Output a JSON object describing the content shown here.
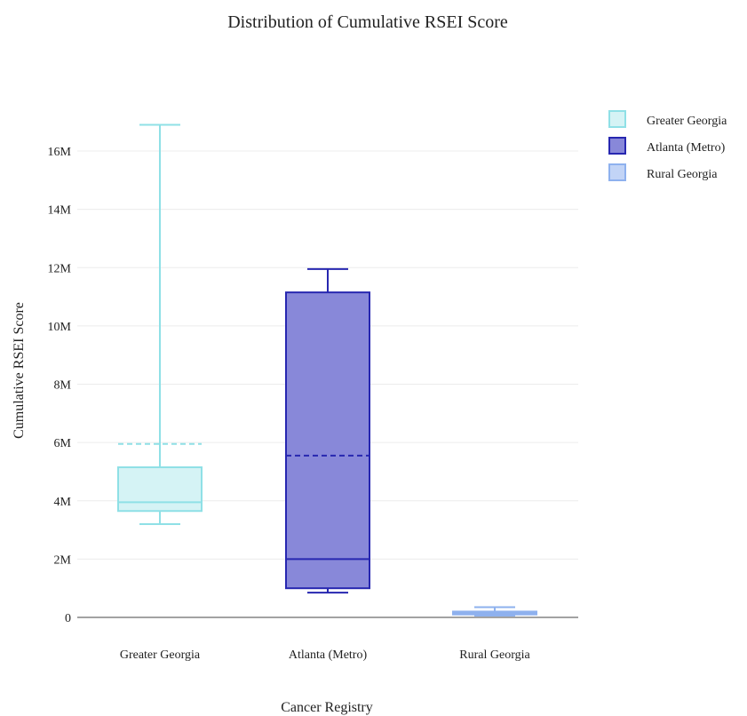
{
  "chart_data": {
    "type": "box",
    "title": "Distribution of Cumulative RSEI Score",
    "xlabel": "Cancer Registry",
    "ylabel": "Cumulative RSEI Score",
    "ylim": [
      -500000,
      17500000
    ],
    "y_ticks": [
      {
        "value": 0,
        "label": "0"
      },
      {
        "value": 2000000,
        "label": "2M"
      },
      {
        "value": 4000000,
        "label": "4M"
      },
      {
        "value": 6000000,
        "label": "6M"
      },
      {
        "value": 8000000,
        "label": "8M"
      },
      {
        "value": 10000000,
        "label": "10M"
      },
      {
        "value": 12000000,
        "label": "12M"
      },
      {
        "value": 14000000,
        "label": "14M"
      },
      {
        "value": 16000000,
        "label": "16M"
      }
    ],
    "grid": true,
    "legend_position": "top-right",
    "show_mean": true,
    "categories": [
      "Greater Georgia",
      "Atlanta (Metro)",
      "Rural Georgia"
    ],
    "series": [
      {
        "name": "Greater Georgia",
        "min": 3200000,
        "q1": 3650000,
        "median": 3950000,
        "q3": 5150000,
        "max": 16900000,
        "mean": 5950000,
        "color": "#8fe0e6",
        "fill": "#d5f3f5"
      },
      {
        "name": "Atlanta (Metro)",
        "min": 850000,
        "q1": 1000000,
        "median": 2000000,
        "q3": 11150000,
        "max": 11950000,
        "mean": 5550000,
        "color": "#2727b0",
        "fill": "#8888d9"
      },
      {
        "name": "Rural Georgia",
        "min": 60000,
        "q1": 100000,
        "median": 150000,
        "q3": 200000,
        "max": 350000,
        "mean": 170000,
        "color": "#8eb1ee",
        "fill": "#c2d4f6"
      }
    ]
  }
}
